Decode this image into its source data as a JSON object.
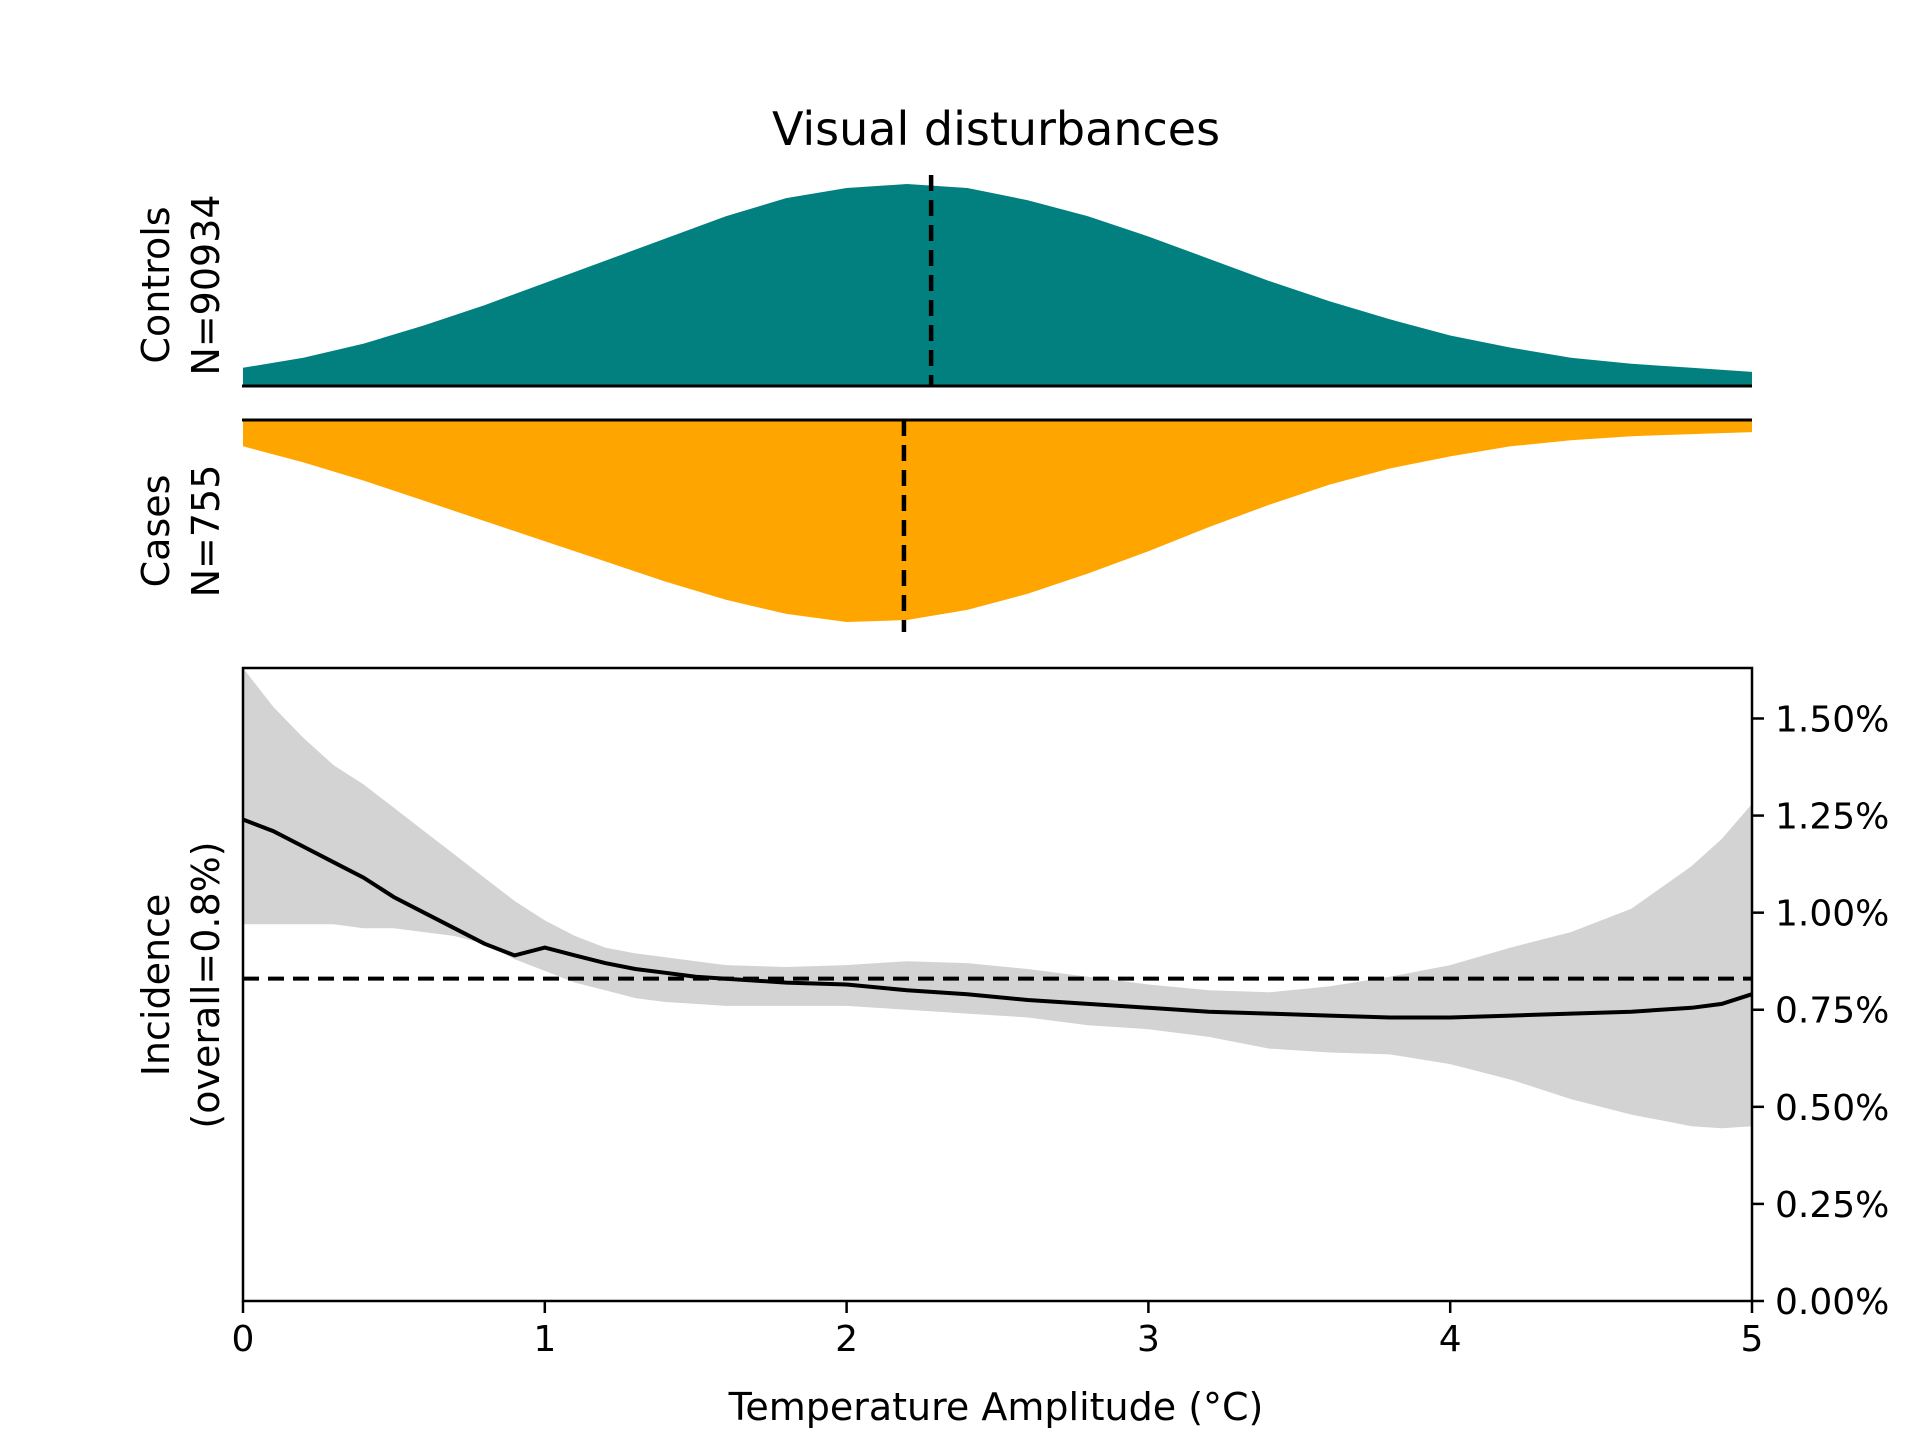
{
  "chart_data": [
    {
      "type": "area",
      "title": "Visual disturbances",
      "ylabel": [
        "Controls",
        "N=90934"
      ],
      "color": "#028080",
      "median_x": 2.28,
      "x": [
        0,
        0.2,
        0.4,
        0.6,
        0.8,
        1.0,
        1.2,
        1.4,
        1.6,
        1.8,
        2.0,
        2.2,
        2.4,
        2.6,
        2.8,
        3.0,
        3.2,
        3.4,
        3.6,
        3.8,
        4.0,
        4.2,
        4.4,
        4.6,
        4.8,
        5.0
      ],
      "density": [
        0.09,
        0.14,
        0.21,
        0.3,
        0.4,
        0.51,
        0.62,
        0.73,
        0.84,
        0.93,
        0.98,
        1.0,
        0.98,
        0.92,
        0.84,
        0.74,
        0.63,
        0.52,
        0.42,
        0.33,
        0.25,
        0.19,
        0.14,
        0.11,
        0.09,
        0.07
      ]
    },
    {
      "type": "area",
      "ylabel": [
        "Cases",
        "N=755"
      ],
      "color": "#ffa500",
      "median_x": 2.19,
      "x": [
        0,
        0.2,
        0.4,
        0.6,
        0.8,
        1.0,
        1.2,
        1.4,
        1.6,
        1.8,
        2.0,
        2.2,
        2.4,
        2.6,
        2.8,
        3.0,
        3.2,
        3.4,
        3.6,
        3.8,
        4.0,
        4.2,
        4.4,
        4.6,
        4.8,
        5.0
      ],
      "density": [
        0.13,
        0.21,
        0.3,
        0.4,
        0.5,
        0.6,
        0.7,
        0.8,
        0.89,
        0.96,
        1.0,
        0.99,
        0.94,
        0.86,
        0.76,
        0.65,
        0.53,
        0.42,
        0.32,
        0.24,
        0.18,
        0.13,
        0.1,
        0.08,
        0.07,
        0.06
      ]
    },
    {
      "type": "line",
      "xlabel": "Temperature Amplitude (°C)",
      "ylabel": [
        "Incidence",
        "(overall=0.8%)"
      ],
      "xlim": [
        0,
        5
      ],
      "ylim": [
        0,
        1.63
      ],
      "xticks": [
        0,
        1,
        2,
        3,
        4,
        5
      ],
      "xtick_labels": [
        "0",
        "1",
        "2",
        "3",
        "4",
        "5"
      ],
      "yticks": [
        0,
        0.25,
        0.5,
        0.75,
        1.0,
        1.25,
        1.5
      ],
      "ytick_labels": [
        "0.00%",
        "0.25%",
        "0.50%",
        "0.75%",
        "1.00%",
        "1.25%",
        "1.50%"
      ],
      "y_axis_side": "right",
      "overall": 0.83,
      "grid": false,
      "series": [
        {
          "x": [
            0,
            0.1,
            0.2,
            0.3,
            0.4,
            0.5,
            0.6,
            0.7,
            0.8,
            0.9,
            1.0,
            1.1,
            1.2,
            1.3,
            1.4,
            1.5,
            1.6,
            1.8,
            2.0,
            2.2,
            2.4,
            2.6,
            2.8,
            3.0,
            3.2,
            3.4,
            3.6,
            3.8,
            4.0,
            4.2,
            4.4,
            4.6,
            4.8,
            4.9,
            5.0
          ],
          "values": [
            1.24,
            1.21,
            1.17,
            1.13,
            1.09,
            1.04,
            1.0,
            0.96,
            0.92,
            0.89,
            0.91,
            0.89,
            0.87,
            0.855,
            0.845,
            0.835,
            0.83,
            0.82,
            0.815,
            0.8,
            0.79,
            0.775,
            0.765,
            0.755,
            0.745,
            0.74,
            0.735,
            0.73,
            0.73,
            0.735,
            0.74,
            0.745,
            0.755,
            0.765,
            0.79
          ],
          "lower": [
            0.97,
            0.97,
            0.97,
            0.97,
            0.96,
            0.96,
            0.95,
            0.94,
            0.92,
            0.88,
            0.85,
            0.82,
            0.8,
            0.78,
            0.77,
            0.765,
            0.76,
            0.76,
            0.76,
            0.75,
            0.74,
            0.73,
            0.71,
            0.7,
            0.68,
            0.65,
            0.64,
            0.635,
            0.61,
            0.57,
            0.52,
            0.48,
            0.45,
            0.445,
            0.45
          ],
          "upper": [
            1.63,
            1.53,
            1.45,
            1.38,
            1.33,
            1.27,
            1.21,
            1.15,
            1.09,
            1.03,
            0.98,
            0.94,
            0.91,
            0.895,
            0.885,
            0.875,
            0.865,
            0.86,
            0.865,
            0.875,
            0.87,
            0.855,
            0.835,
            0.815,
            0.8,
            0.795,
            0.81,
            0.835,
            0.865,
            0.91,
            0.95,
            1.01,
            1.12,
            1.19,
            1.28
          ]
        }
      ]
    }
  ]
}
